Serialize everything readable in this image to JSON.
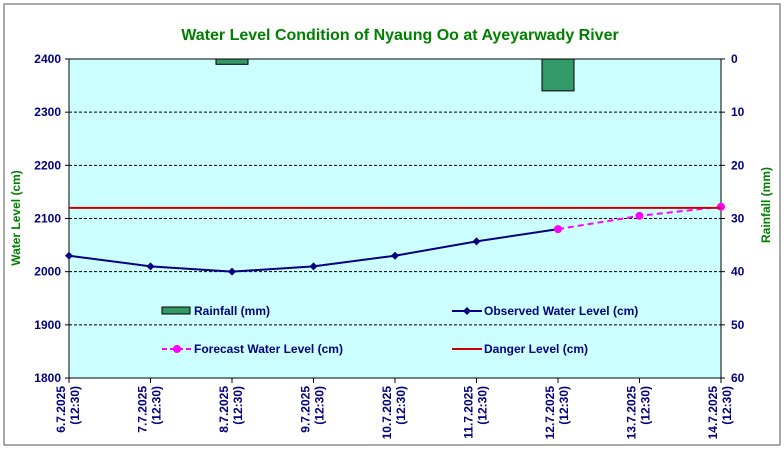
{
  "chart_data": {
    "type": "line",
    "title": "Water Level Condition of Nyaung Oo at Ayeyarwady River",
    "ylabel": "Water Level (cm)",
    "y2label": "Rainfall (mm)",
    "ylim": [
      1800,
      2400
    ],
    "y_ticks": [
      1800,
      1900,
      2000,
      2100,
      2200,
      2300,
      2400
    ],
    "y2lim": [
      0,
      60
    ],
    "y2_ticks": [
      0,
      10,
      20,
      30,
      40,
      50,
      60
    ],
    "y2_inverted": true,
    "grid": "horizontal dashed",
    "categories": [
      [
        "6.7.2025",
        "(12:30)"
      ],
      [
        "7.7.2025",
        "(12:30)"
      ],
      [
        "8.7.2025",
        "(12:30)"
      ],
      [
        "9.7.2025",
        "(12:30)"
      ],
      [
        "10.7.2025",
        "(12:30)"
      ],
      [
        "11.7.2025",
        "(12:30)"
      ],
      [
        "12.7.2025",
        "(12:30)"
      ],
      [
        "13.7.2025",
        "(12:30)"
      ],
      [
        "14.7.2025",
        "(12:30)"
      ]
    ],
    "series": [
      {
        "name": "Rainfall (mm)",
        "kind": "bar",
        "axis": "right",
        "color": "#339966",
        "values": [
          null,
          null,
          1,
          null,
          null,
          null,
          6,
          null,
          null
        ]
      },
      {
        "name": "Observed Water Level (cm)",
        "kind": "line",
        "axis": "left",
        "color": "#000080",
        "marker": "diamond",
        "values": [
          2030,
          2010,
          2000,
          2010,
          2030,
          2057,
          2080,
          null,
          null
        ]
      },
      {
        "name": "Forecast Water Level (cm)",
        "kind": "line",
        "axis": "left",
        "color": "#ff00ff",
        "marker": "circle",
        "dash": true,
        "values": [
          null,
          null,
          null,
          null,
          null,
          null,
          2080,
          2105,
          2122
        ]
      },
      {
        "name": "Danger Level (cm)",
        "kind": "hline",
        "axis": "left",
        "color": "#cc0000",
        "value": 2120
      }
    ],
    "legend_placement": "inside plot, lower half, two columns",
    "plot_background": "#ccffff"
  }
}
